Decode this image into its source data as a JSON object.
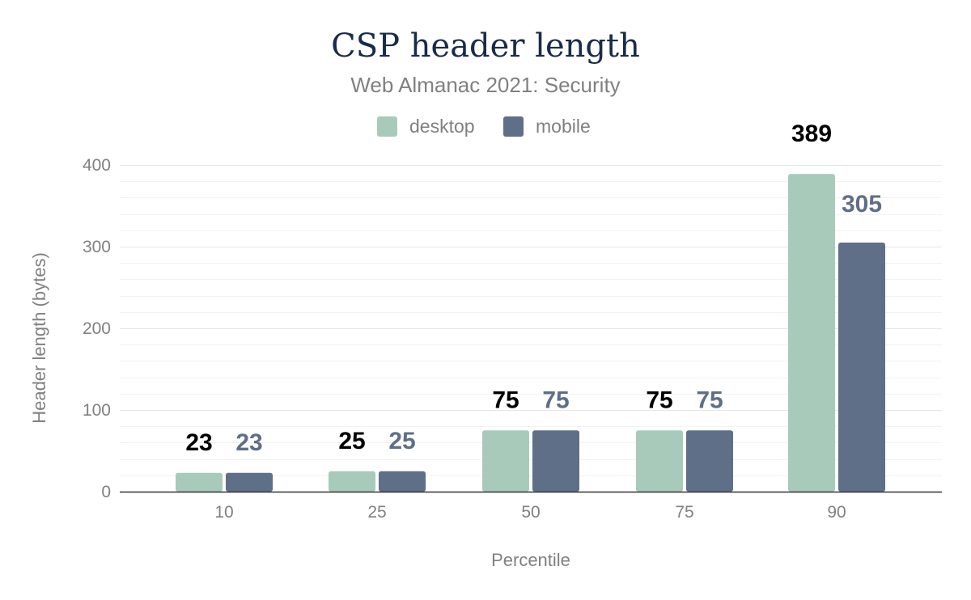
{
  "chart_data": {
    "type": "bar",
    "title": "CSP header length",
    "subtitle": "Web Almanac 2021: Security",
    "xlabel": "Percentile",
    "ylabel": "Header length (bytes)",
    "categories": [
      "10",
      "25",
      "50",
      "75",
      "90"
    ],
    "ylim": [
      0,
      400
    ],
    "yticks": [
      0,
      100,
      200,
      300,
      400
    ],
    "grid": true,
    "legend_position": "top",
    "series": [
      {
        "name": "desktop",
        "values": [
          23,
          25,
          75,
          75,
          389
        ],
        "color": "#a8cabb",
        "label_color": "#000000"
      },
      {
        "name": "mobile",
        "values": [
          23,
          25,
          75,
          75,
          305
        ],
        "color": "#5f6f88",
        "label_color": "#5f6f88"
      }
    ],
    "colors": {
      "title": "#1a2b49",
      "muted_text": "#808080",
      "grid_major": "#e6e6e6",
      "grid_minor": "#f2f2f2",
      "axis_line": "#333333"
    }
  }
}
